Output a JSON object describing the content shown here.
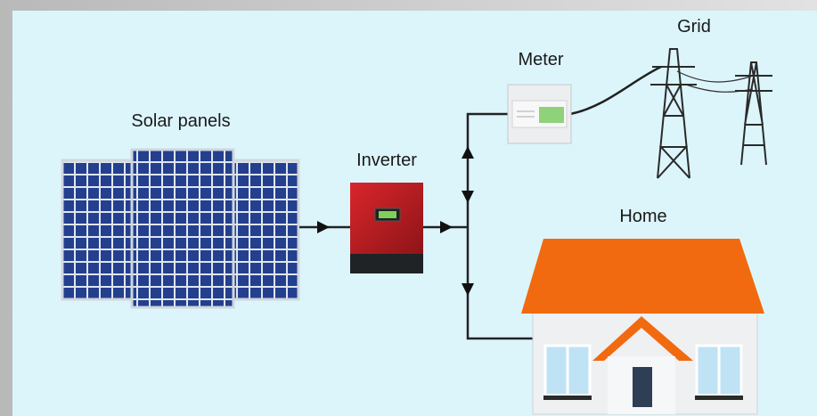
{
  "labels": {
    "solar_panels": "Solar panels",
    "inverter": "Inverter",
    "meter": "Meter",
    "grid": "Grid",
    "home": "Home"
  }
}
